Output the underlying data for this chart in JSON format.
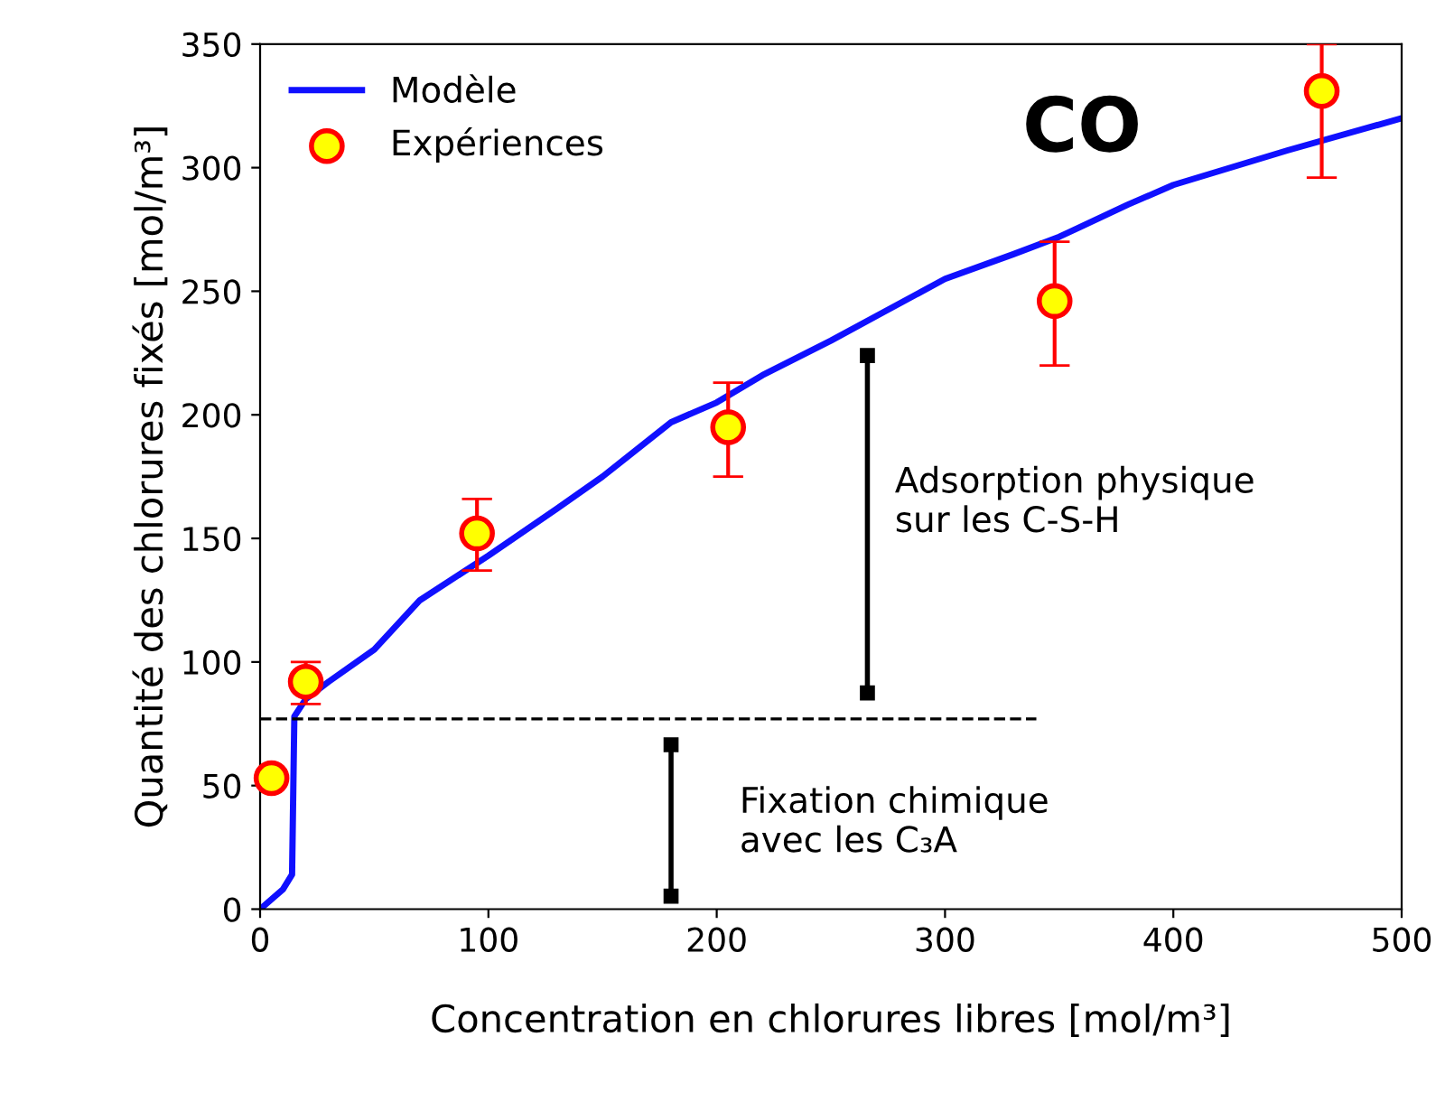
{
  "chart_data": {
    "type": "line",
    "title": "CO",
    "xlabel": "Concentration en chlorures libres [mol/m³]",
    "ylabel": "Quantité des chlorures fixés [mol/m³]",
    "xlim": [
      0,
      500
    ],
    "xticks": [
      0,
      100,
      200,
      300,
      400,
      500
    ],
    "ylim": [
      0,
      350
    ],
    "yticks": [
      0,
      50,
      100,
      150,
      200,
      250,
      300,
      350
    ],
    "grid": false,
    "legend": "top left",
    "series": [
      {
        "name": "Modèle",
        "color": "#1010ff",
        "line_style": "solid",
        "marker": "none",
        "x": [
          0,
          10,
          14,
          15,
          20,
          30,
          50,
          70,
          100,
          130,
          150,
          180,
          200,
          220,
          250,
          270,
          300,
          330,
          350,
          380,
          400,
          450,
          500
        ],
        "values": [
          0,
          8,
          14,
          78,
          85,
          92,
          105,
          125,
          143,
          162,
          175,
          197,
          205,
          216,
          230,
          240,
          255,
          265,
          272,
          285,
          293,
          307,
          320
        ]
      },
      {
        "name": "Expériences",
        "type": "scatter",
        "color": "#ffff00",
        "marker": "circle",
        "x": [
          5,
          20,
          95,
          205,
          348,
          465
        ],
        "values": [
          53,
          92,
          152,
          195,
          246,
          331
        ],
        "errors": [
          null,
          [
            83,
            100
          ],
          [
            137,
            166
          ],
          [
            175,
            213
          ],
          [
            220,
            270
          ],
          [
            296,
            350
          ]
        ]
      },
      {
        "type": "line",
        "color": "#000000",
        "line_style": "dashed",
        "marker": "none",
        "x": [
          0,
          340
        ],
        "values": [
          77,
          77
        ]
      }
    ],
    "annotations": [
      "Adsorption physique\nsur les C-S-H",
      "Fixation chimique\navec les C₃A"
    ]
  }
}
